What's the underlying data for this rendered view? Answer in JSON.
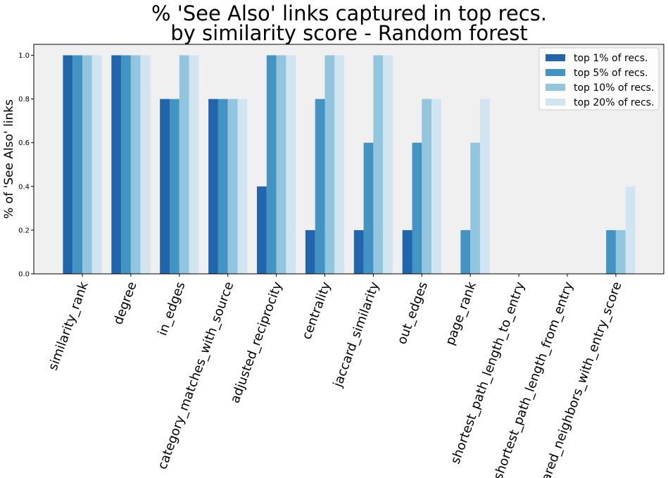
{
  "chart_data": {
    "type": "bar",
    "title_line1": "% 'See Also' links captured in top recs.",
    "title_line2": "by similarity score - Random forest",
    "xlabel": "",
    "ylabel": "% of 'See Also' links",
    "ylim": [
      0,
      1.05
    ],
    "yticks": [
      "0.0",
      "0.2",
      "0.4",
      "0.6",
      "0.8",
      "1.0"
    ],
    "ytick_values": [
      0,
      0.2,
      0.4,
      0.6,
      0.8,
      1.0
    ],
    "legend_position": "top-right",
    "grid": false,
    "background": "#f0f0f0",
    "categories": [
      "similarity_rank",
      "degree",
      "in_edges",
      "category_matches_with_source",
      "adjusted_reciprocity",
      "centrality",
      "jaccard_similarity",
      "out_edges",
      "page_rank",
      "shortest_path_length_to_entry",
      "shortest_path_length_from_entry",
      "shared_neighbors_with_entry_score"
    ],
    "series": [
      {
        "name": "top 1% of recs.",
        "color": "#2166ac",
        "values": [
          1.0,
          1.0,
          0.8,
          0.8,
          0.4,
          0.2,
          0.2,
          0.2,
          0.0,
          0.0,
          0.0,
          0.0
        ]
      },
      {
        "name": "top 5% of recs.",
        "color": "#4393c3",
        "values": [
          1.0,
          1.0,
          0.8,
          0.8,
          1.0,
          0.8,
          0.6,
          0.6,
          0.2,
          0.0,
          0.0,
          0.2
        ]
      },
      {
        "name": "top 10% of recs.",
        "color": "#92c5de",
        "values": [
          1.0,
          1.0,
          1.0,
          0.8,
          1.0,
          1.0,
          1.0,
          0.8,
          0.6,
          0.0,
          0.0,
          0.2
        ]
      },
      {
        "name": "top 20% of recs.",
        "color": "#d1e5f0",
        "values": [
          1.0,
          1.0,
          1.0,
          0.8,
          1.0,
          1.0,
          1.0,
          0.8,
          0.8,
          0.0,
          0.0,
          0.4
        ]
      }
    ]
  }
}
